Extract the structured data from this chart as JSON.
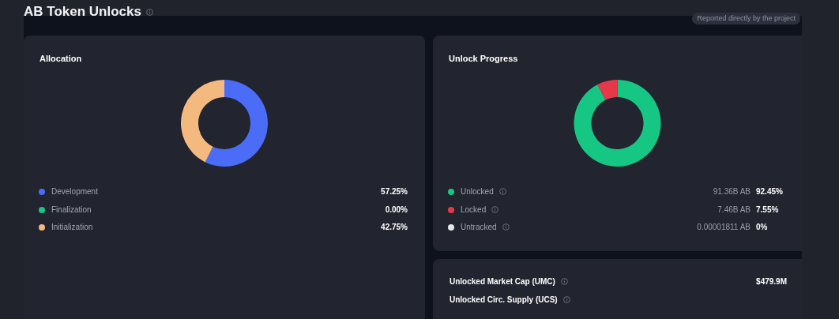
{
  "chart_data": [
    {
      "type": "other",
      "title": "AB Token Unlocks",
      "annotations": [
        "Reported directly by the project"
      ]
    },
    {
      "type": "donut",
      "title": "Allocation",
      "categories": [
        "Development",
        "Finalization",
        "Initialization"
      ],
      "values": [
        57.25,
        0.0,
        42.75
      ],
      "colors": [
        "#4a6cf7",
        "#16c784",
        "#f4b97e"
      ],
      "value_labels": [
        "57.25%",
        "0.00%",
        "42.75%"
      ],
      "legend": "bottom"
    },
    {
      "type": "donut",
      "title": "Unlock Progress",
      "categories": [
        "Unlocked",
        "Locked",
        "Untracked"
      ],
      "values": [
        92.45,
        7.55,
        0
      ],
      "colors": [
        "#16c784",
        "#e5394a",
        "#e6e6e6"
      ],
      "value_labels": [
        "92.45%",
        "7.55%",
        "0%"
      ],
      "annotations": [
        "91.36B AB",
        "7.46B AB",
        "0.00001811 AB"
      ],
      "legend": "bottom"
    },
    {
      "type": "other",
      "categories": [
        "Unlocked Market Cap (UMC)",
        "Unlocked Circ. Supply (UCS)"
      ],
      "value_labels": [
        "$479.9M",
        null
      ]
    }
  ]
}
